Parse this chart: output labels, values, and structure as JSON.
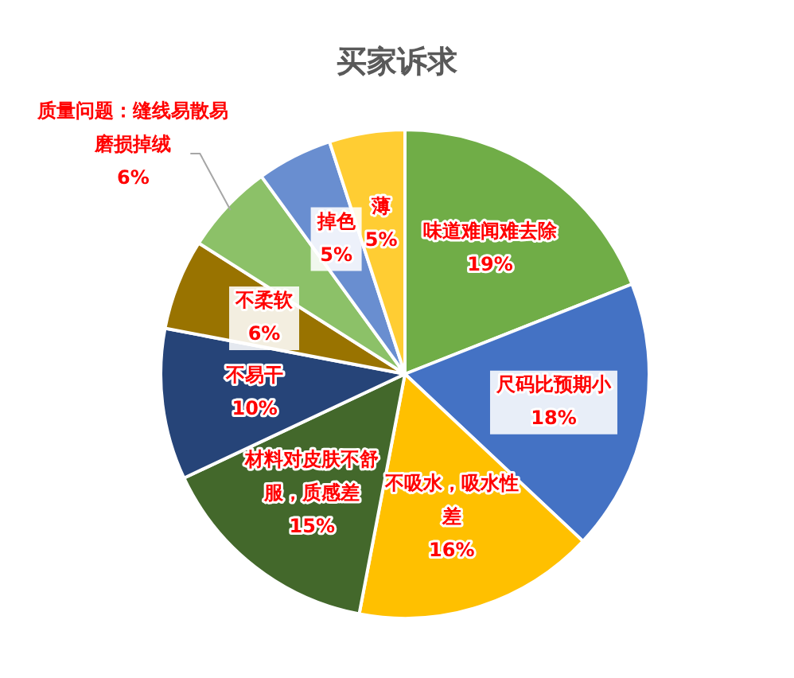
{
  "chart_data": {
    "type": "pie",
    "title": "买家诉求",
    "categories": [
      "味道难闻难去除",
      "尺码比预期小",
      "不吸水，吸水性差",
      "材料对皮肤不舒服，质感差",
      "不易干",
      "不柔软",
      "质量问题：缝线易散易磨损掉绒",
      "掉色",
      "薄"
    ],
    "values": [
      19,
      18,
      16,
      15,
      10,
      6,
      6,
      5,
      5
    ],
    "colors": [
      "#70ad47",
      "#4472c4",
      "#ffc000",
      "#43682b",
      "#264478",
      "#997300",
      "#8cc168",
      "#698ed0",
      "#ffcd33"
    ],
    "value_labels": [
      "19%",
      "18%",
      "16%",
      "15%",
      "10%",
      "6%",
      "6%",
      "5%",
      "5%"
    ],
    "legend": false
  }
}
